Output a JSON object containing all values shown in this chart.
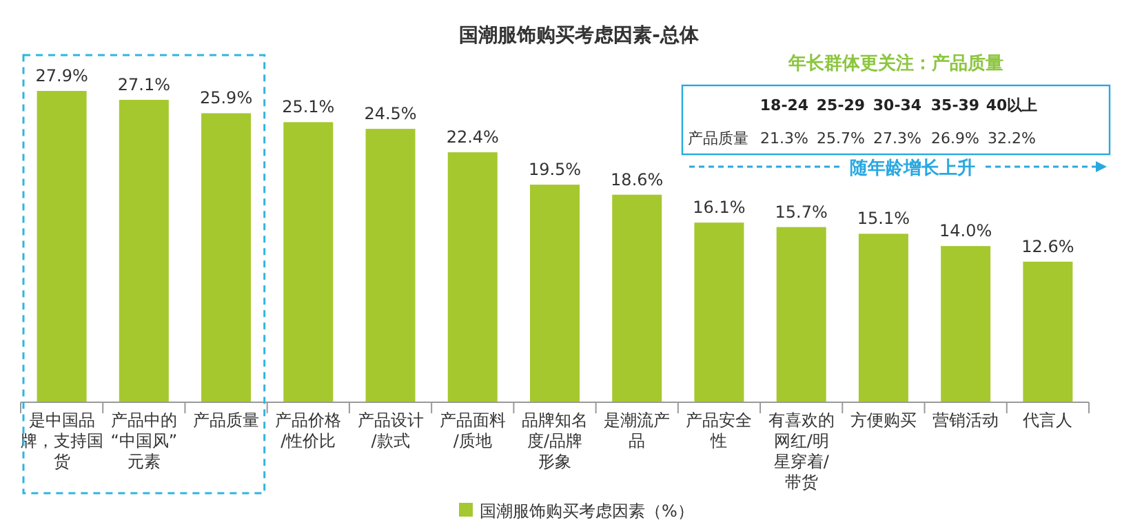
{
  "chart_data": {
    "type": "bar",
    "title": "国潮服饰购买考虑因素-总体",
    "categories": [
      "是中国品牌，支持国货",
      "产品中的“中国风”元素",
      "产品质量",
      "产品价格/性价比",
      "产品设计/款式",
      "产品面料/质地",
      "品牌知名度/品牌形象",
      "是潮流产品",
      "产品安全性",
      "有喜欢的网红/明星穿着/带货",
      "方便购买",
      "营销活动",
      "代言人"
    ],
    "series": [
      {
        "name": "国潮服饰购买考虑因素（%）",
        "color": "#a5c82f",
        "values": [
          27.9,
          27.1,
          25.9,
          25.1,
          24.5,
          22.4,
          19.5,
          18.6,
          16.1,
          15.7,
          15.1,
          14.0,
          12.6
        ],
        "value_labels": [
          "27.9%",
          "27.1%",
          "25.9%",
          "25.1%",
          "24.5%",
          "22.4%",
          "19.5%",
          "18.6%",
          "16.1%",
          "15.7%",
          "15.1%",
          "14.0%",
          "12.6%"
        ]
      }
    ],
    "legend": "bottom",
    "annotations": [
      "年长群体更关注：产品质量",
      "18-24",
      "25-29",
      "30-34",
      "35-39",
      "40以上",
      "产品质量",
      "21.3%",
      "25.7%",
      "27.3%",
      "26.9%",
      "32.2%",
      "随年龄增长上升"
    ]
  }
}
